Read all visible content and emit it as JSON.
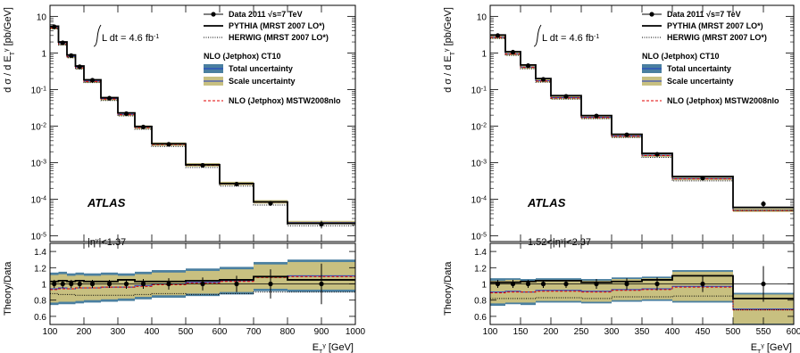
{
  "figure": {
    "atlas_label": "ATLAS",
    "lumi_text": "L dt =  4.6 fb",
    "lumi_exponent": "-1",
    "y_label_main": "d σ / d E",
    "y_label_main_unit": "[pb/GeV]",
    "y_label_ratio": "Theory/Data",
    "x_label": "E",
    "x_label_unit": "[GeV]",
    "legend": {
      "data": "Data 2011",
      "data_energy": "s=7 TeV",
      "pythia": "PYTHIA (MRST 2007 LO*)",
      "herwig": "HERWIG (MRST 2007 LO*)",
      "nlo_header": "NLO (Jetphox) CT10",
      "total_unc": "Total uncertainty",
      "scale_unc": "Scale uncertainty",
      "mstw": "NLO (Jetphox) MSTW2008nlo"
    },
    "colors": {
      "total_unc": "#4a7fa0",
      "scale_unc": "#c8c080",
      "mstw": "#e00000",
      "ct10_line": "#1e3cc8"
    }
  },
  "chart_data": [
    {
      "type": "step",
      "region": "|η",
      "region_suffix": "|<1.37",
      "region_prefix": "",
      "x_range": [
        100,
        1000
      ],
      "x_ticks": [
        100,
        200,
        300,
        400,
        500,
        600,
        700,
        800,
        900,
        1000
      ],
      "y_log": true,
      "y_range": [
        7e-06,
        20
      ],
      "y_ticks": [
        {
          "base": "10",
          "exp": "-5",
          "v": 1e-05
        },
        {
          "base": "10",
          "exp": "-4",
          "v": 0.0001
        },
        {
          "base": "10",
          "exp": "-3",
          "v": 0.001
        },
        {
          "base": "10",
          "exp": "-2",
          "v": 0.01
        },
        {
          "base": "10",
          "exp": "-1",
          "v": 0.1
        },
        {
          "base": "1",
          "exp": "",
          "v": 1
        },
        {
          "base": "10",
          "exp": "",
          "v": 10
        }
      ],
      "ratio_range": [
        0.5,
        1.5
      ],
      "ratio_ticks": [
        "0.6",
        "0.8",
        "1",
        "1.2",
        "1.4"
      ],
      "bins": [
        100,
        125,
        150,
        175,
        200,
        250,
        300,
        350,
        400,
        500,
        600,
        700,
        800,
        1000
      ],
      "data": [
        5.2,
        1.9,
        0.85,
        0.42,
        0.18,
        0.058,
        0.022,
        0.0095,
        0.0032,
        0.00085,
        0.00026,
        7.8e-05,
        2.1e-05
      ],
      "data_err": [
        0.25,
        0.09,
        0.04,
        0.02,
        0.009,
        0.003,
        0.0012,
        0.0005,
        0.0002,
        6e-05,
        2.5e-05,
        1.2e-05,
        5e-06
      ],
      "pythia": [
        5.4,
        2.0,
        0.88,
        0.44,
        0.185,
        0.06,
        0.023,
        0.0098,
        0.0033,
        0.00088,
        0.00027,
        8.5e-05,
        2.2e-05
      ],
      "herwig": [
        4.6,
        1.65,
        0.74,
        0.36,
        0.155,
        0.05,
        0.019,
        0.0082,
        0.0028,
        0.00074,
        0.00023,
        7e-05,
        1.9e-05
      ],
      "nlo": [
        4.9,
        1.8,
        0.8,
        0.4,
        0.17,
        0.056,
        0.021,
        0.0093,
        0.0032,
        0.00087,
        0.00027,
        8.5e-05,
        2.3e-05
      ],
      "ratio_data_err": [
        0.05,
        0.05,
        0.05,
        0.05,
        0.05,
        0.05,
        0.06,
        0.06,
        0.07,
        0.08,
        0.1,
        0.18,
        0.25
      ],
      "ratio_pythia": [
        1.03,
        1.04,
        1.03,
        1.04,
        1.03,
        1.03,
        1.05,
        1.03,
        1.03,
        1.04,
        1.05,
        1.09,
        1.05
      ],
      "ratio_herwig": [
        0.88,
        0.87,
        0.87,
        0.86,
        0.86,
        0.86,
        0.86,
        0.87,
        0.88,
        0.87,
        0.88,
        0.9,
        0.9
      ],
      "ratio_nlo": [
        0.94,
        0.95,
        0.94,
        0.95,
        0.95,
        0.96,
        0.96,
        0.98,
        1.0,
        1.02,
        1.04,
        1.09,
        1.1
      ],
      "ratio_mstw": [
        0.93,
        0.94,
        0.94,
        0.95,
        0.95,
        0.96,
        0.96,
        0.97,
        0.99,
        1.01,
        1.03,
        1.08,
        1.09
      ],
      "ratio_total_unc": [
        0.2,
        0.2,
        0.19,
        0.19,
        0.18,
        0.18,
        0.17,
        0.17,
        0.17,
        0.17,
        0.17,
        0.18,
        0.2
      ],
      "ratio_scale_unc": [
        0.17,
        0.17,
        0.16,
        0.16,
        0.15,
        0.15,
        0.14,
        0.14,
        0.14,
        0.14,
        0.14,
        0.15,
        0.17
      ]
    },
    {
      "type": "step",
      "region": "|<2.37",
      "region_prefix": "1.52<|η",
      "region_suffix": "",
      "x_range": [
        100,
        600
      ],
      "x_ticks": [
        100,
        150,
        200,
        250,
        300,
        350,
        400,
        450,
        500,
        550,
        600
      ],
      "y_log": true,
      "y_range": [
        7e-06,
        20
      ],
      "y_ticks": [
        {
          "base": "10",
          "exp": "-5",
          "v": 1e-05
        },
        {
          "base": "10",
          "exp": "-4",
          "v": 0.0001
        },
        {
          "base": "10",
          "exp": "-3",
          "v": 0.001
        },
        {
          "base": "10",
          "exp": "-2",
          "v": 0.01
        },
        {
          "base": "10",
          "exp": "-1",
          "v": 0.1
        },
        {
          "base": "1",
          "exp": "",
          "v": 1
        },
        {
          "base": "10",
          "exp": "",
          "v": 10
        }
      ],
      "ratio_range": [
        0.5,
        1.5
      ],
      "ratio_ticks": [
        "0.6",
        "0.8",
        "1",
        "1.2",
        "1.4"
      ],
      "bins": [
        100,
        125,
        150,
        175,
        200,
        250,
        300,
        350,
        400,
        500,
        600
      ],
      "data": [
        3.0,
        1.05,
        0.45,
        0.19,
        0.065,
        0.019,
        0.0058,
        0.0017,
        0.00038,
        7.5e-05
      ],
      "data_err": [
        0.15,
        0.05,
        0.022,
        0.01,
        0.0035,
        0.001,
        0.0004,
        0.00013,
        4e-05,
        1.5e-05
      ],
      "pythia": [
        3.1,
        1.08,
        0.47,
        0.2,
        0.068,
        0.0195,
        0.006,
        0.0018,
        0.00042,
        6e-05
      ],
      "herwig": [
        2.5,
        0.86,
        0.37,
        0.16,
        0.055,
        0.016,
        0.0049,
        0.0014,
        0.00032,
        5e-05
      ],
      "nlo": [
        2.7,
        0.95,
        0.41,
        0.175,
        0.06,
        0.0175,
        0.0054,
        0.0016,
        0.00037,
        5e-05
      ],
      "ratio_data_err": [
        0.05,
        0.05,
        0.05,
        0.05,
        0.05,
        0.06,
        0.07,
        0.08,
        0.1,
        0.22
      ],
      "ratio_pythia": [
        1.02,
        1.02,
        1.03,
        1.04,
        1.04,
        1.02,
        1.03,
        1.05,
        1.1,
        0.82
      ],
      "ratio_herwig": [
        0.82,
        0.82,
        0.82,
        0.83,
        0.83,
        0.82,
        0.84,
        0.84,
        0.85,
        0.68
      ],
      "ratio_nlo": [
        0.9,
        0.91,
        0.9,
        0.92,
        0.92,
        0.91,
        0.93,
        0.94,
        0.97,
        0.69
      ],
      "ratio_mstw": [
        0.89,
        0.9,
        0.9,
        0.91,
        0.91,
        0.9,
        0.92,
        0.93,
        0.96,
        0.68
      ],
      "ratio_total_unc": [
        0.17,
        0.16,
        0.16,
        0.15,
        0.15,
        0.15,
        0.15,
        0.15,
        0.2,
        0.2
      ],
      "ratio_scale_unc": [
        0.14,
        0.14,
        0.13,
        0.13,
        0.13,
        0.13,
        0.13,
        0.13,
        0.18,
        0.18
      ]
    }
  ]
}
